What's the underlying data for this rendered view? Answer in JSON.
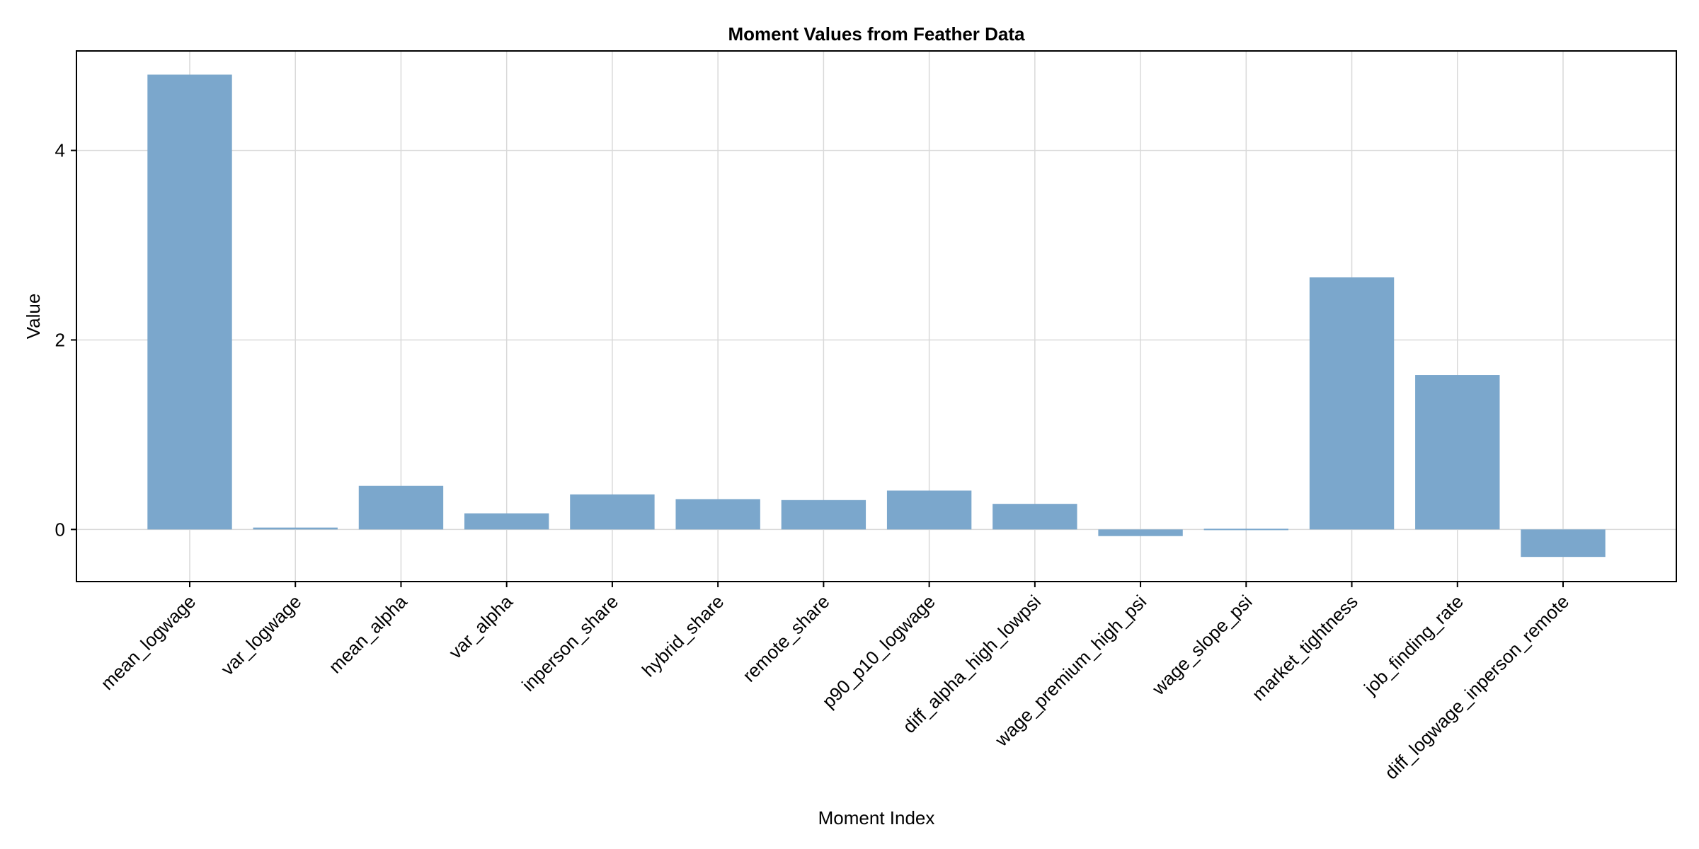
{
  "chart_data": {
    "type": "bar",
    "title": "Moment Values from Feather Data",
    "xlabel": "Moment Index",
    "ylabel": "Value",
    "ylim": [
      -0.55,
      5.05
    ],
    "yticks": [
      0,
      2,
      4
    ],
    "grid": true,
    "bar_color": "#7ba7cc",
    "categories": [
      "mean_logwage",
      "var_logwage",
      "mean_alpha",
      "var_alpha",
      "inperson_share",
      "hybrid_share",
      "remote_share",
      "p90_p10_logwage",
      "diff_alpha_high_lowpsi",
      "wage_premium_high_psi",
      "wage_slope_psi",
      "market_tightness",
      "job_finding_rate",
      "diff_logwage_inperson_remote"
    ],
    "values": [
      4.8,
      0.02,
      0.46,
      0.17,
      0.37,
      0.32,
      0.31,
      0.41,
      0.27,
      -0.07,
      -0.01,
      2.66,
      1.63,
      -0.29
    ]
  }
}
